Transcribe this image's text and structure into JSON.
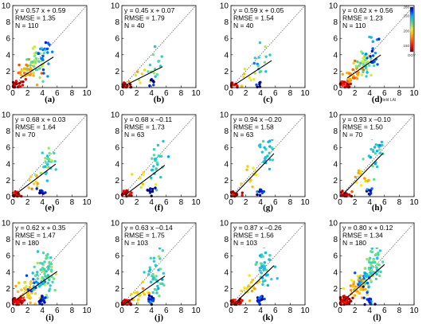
{
  "chart_data": {
    "type": "scatter",
    "layout": "grid 3x4",
    "axes": {
      "xlim": [
        0,
        10
      ],
      "ylim": [
        0,
        10
      ],
      "xticks": [
        0,
        2,
        4,
        6,
        8,
        10
      ],
      "yticks": [
        0,
        2,
        4,
        6,
        8,
        10
      ]
    },
    "reference_line": "1:1 dotted",
    "panels": [
      {
        "label": "(a)",
        "equation": "y = 0.57 x + 0.59",
        "rmse": "RMSE = 1.35",
        "n": "N = 110",
        "slope": 0.57,
        "intercept": 0.59,
        "fit_x": [
          1.0,
          5.5
        ],
        "seed": 11,
        "clusters": [
          [
            0.6,
            0.4,
            0.5,
            0.3,
            25,
            0.08
          ],
          [
            2.0,
            1.8,
            0.8,
            0.6,
            30,
            0.35
          ],
          [
            3.3,
            3.0,
            0.6,
            0.8,
            35,
            0.6
          ],
          [
            4.3,
            3.9,
            0.5,
            1.2,
            20,
            0.85
          ]
        ]
      },
      {
        "label": "(b)",
        "equation": "y = 0.45 x + 0.07",
        "rmse": "RMSE = 1.79",
        "n": "N = 40",
        "slope": 0.45,
        "intercept": 0.07,
        "fit_x": [
          0.5,
          5.5
        ],
        "seed": 23,
        "clusters": [
          [
            0.6,
            0.2,
            0.4,
            0.2,
            12,
            0.08
          ],
          [
            2.5,
            1.0,
            0.6,
            0.5,
            8,
            0.4
          ],
          [
            4.3,
            2.5,
            0.6,
            1.0,
            14,
            0.7
          ],
          [
            3.9,
            0.6,
            0.3,
            0.3,
            6,
            0.97
          ]
        ]
      },
      {
        "label": "(c)",
        "equation": "y = 0.59 x + 0.05",
        "rmse": "RMSE = 1.54",
        "n": "N = 40",
        "slope": 0.59,
        "intercept": 0.05,
        "fit_x": [
          0.5,
          5.5
        ],
        "seed": 37,
        "clusters": [
          [
            0.6,
            0.2,
            0.4,
            0.2,
            12,
            0.08
          ],
          [
            2.5,
            1.2,
            0.6,
            0.5,
            8,
            0.45
          ],
          [
            4.3,
            3.2,
            0.6,
            1.1,
            14,
            0.7
          ],
          [
            3.9,
            0.6,
            0.3,
            0.3,
            6,
            0.97
          ]
        ]
      },
      {
        "label": "(d)",
        "equation": "y = 0.62 x + 0.56",
        "rmse": "RMSE = 1.23",
        "n": "N = 110",
        "slope": 0.62,
        "intercept": 0.56,
        "fit_x": [
          1.0,
          5.5
        ],
        "seed": 41,
        "clusters": [
          [
            0.6,
            0.4,
            0.5,
            0.3,
            25,
            0.08
          ],
          [
            2.0,
            1.8,
            0.8,
            0.6,
            30,
            0.35
          ],
          [
            3.3,
            3.1,
            0.6,
            0.8,
            35,
            0.6
          ],
          [
            4.3,
            4.0,
            0.5,
            1.2,
            20,
            0.85
          ]
        ],
        "xlabel": "Field LAI",
        "colorbar": {
          "ticks": [
            150,
            200,
            250,
            280
          ],
          "label": "DOY"
        }
      },
      {
        "label": "(e)",
        "equation": "y = 0.68 x + 0.03",
        "rmse": "RMSE = 1.64",
        "n": "N = 70",
        "slope": 0.68,
        "intercept": 0.03,
        "fit_x": [
          0.5,
          5.8
        ],
        "seed": 53,
        "clusters": [
          [
            0.6,
            0.3,
            0.4,
            0.2,
            20,
            0.08
          ],
          [
            2.8,
            1.5,
            0.7,
            0.8,
            12,
            0.45
          ],
          [
            4.7,
            4.3,
            0.6,
            1.2,
            28,
            0.7
          ],
          [
            4.0,
            0.6,
            0.3,
            0.3,
            10,
            0.97
          ]
        ]
      },
      {
        "label": "(f)",
        "equation": "y = 0.68 x –0.11",
        "rmse": "RMSE = 1.73",
        "n": "N = 63",
        "slope": 0.68,
        "intercept": -0.11,
        "fit_x": [
          0.5,
          5.8
        ],
        "seed": 67,
        "clusters": [
          [
            0.6,
            0.3,
            0.4,
            0.2,
            18,
            0.08
          ],
          [
            2.8,
            1.5,
            0.7,
            0.8,
            10,
            0.45
          ],
          [
            4.7,
            4.3,
            0.6,
            1.2,
            25,
            0.7
          ],
          [
            4.0,
            0.6,
            0.3,
            0.3,
            10,
            0.97
          ]
        ]
      },
      {
        "label": "(g)",
        "equation": "y = 0.94 x –0.20",
        "rmse": "RMSE = 1.58",
        "n": "N = 63",
        "slope": 0.94,
        "intercept": -0.2,
        "fit_x": [
          0.5,
          5.8
        ],
        "seed": 71,
        "clusters": [
          [
            0.6,
            0.3,
            0.4,
            0.2,
            18,
            0.08
          ],
          [
            2.8,
            2.2,
            0.7,
            0.8,
            10,
            0.45
          ],
          [
            4.8,
            5.2,
            0.6,
            1.2,
            25,
            0.72
          ],
          [
            4.0,
            0.6,
            0.3,
            0.3,
            10,
            0.97
          ]
        ]
      },
      {
        "label": "(h)",
        "equation": "y = 0.93 x –0.10",
        "rmse": "RMSE = 1.50",
        "n": "N = 70",
        "slope": 0.93,
        "intercept": -0.1,
        "fit_x": [
          0.5,
          5.8
        ],
        "seed": 83,
        "clusters": [
          [
            0.6,
            0.3,
            0.4,
            0.2,
            20,
            0.08
          ],
          [
            2.8,
            2.2,
            0.7,
            0.8,
            12,
            0.45
          ],
          [
            4.8,
            5.2,
            0.6,
            1.2,
            28,
            0.72
          ],
          [
            4.0,
            0.6,
            0.3,
            0.3,
            10,
            0.97
          ]
        ]
      },
      {
        "label": "(i)",
        "equation": "y = 0.62 x + 0.35",
        "rmse": "RMSE = 1.47",
        "n": "N = 180",
        "slope": 0.62,
        "intercept": 0.35,
        "fit_x": [
          0.5,
          6.0
        ],
        "seed": 97,
        "clusters": [
          [
            0.6,
            0.4,
            0.5,
            0.3,
            45,
            0.08
          ],
          [
            2.2,
            1.7,
            0.8,
            0.7,
            40,
            0.4
          ],
          [
            4.3,
            3.9,
            0.7,
            1.3,
            65,
            0.65
          ],
          [
            4.0,
            0.6,
            0.3,
            0.3,
            15,
            0.97
          ],
          [
            3.0,
            2.6,
            0.6,
            0.6,
            15,
            0.85
          ]
        ]
      },
      {
        "label": "(j)",
        "equation": "y = 0.63 x –0.14",
        "rmse": "RMSE = 1.75",
        "n": "N = 103",
        "slope": 0.63,
        "intercept": -0.14,
        "fit_x": [
          0.5,
          5.8
        ],
        "seed": 101,
        "clusters": [
          [
            0.6,
            0.3,
            0.4,
            0.2,
            30,
            0.08
          ],
          [
            2.6,
            1.3,
            0.7,
            0.8,
            18,
            0.45
          ],
          [
            4.5,
            3.6,
            0.6,
            1.3,
            40,
            0.7
          ],
          [
            4.0,
            0.6,
            0.3,
            0.3,
            15,
            0.97
          ]
        ]
      },
      {
        "label": "(k)",
        "equation": "y = 0.87 x –0.26",
        "rmse": "RMSE = 1.56",
        "n": "N = 103",
        "slope": 0.87,
        "intercept": -0.26,
        "fit_x": [
          0.5,
          5.8
        ],
        "seed": 113,
        "clusters": [
          [
            0.6,
            0.3,
            0.4,
            0.2,
            30,
            0.08
          ],
          [
            2.6,
            1.9,
            0.7,
            0.8,
            18,
            0.45
          ],
          [
            4.6,
            4.8,
            0.6,
            1.3,
            40,
            0.72
          ],
          [
            4.0,
            0.6,
            0.3,
            0.3,
            15,
            0.97
          ]
        ]
      },
      {
        "label": "(l)",
        "equation": "y = 0.80 x + 0.12",
        "rmse": "RMSE = 1.34",
        "n": "N = 180",
        "slope": 0.8,
        "intercept": 0.12,
        "fit_x": [
          0.5,
          6.0
        ],
        "seed": 127,
        "clusters": [
          [
            0.6,
            0.4,
            0.5,
            0.3,
            45,
            0.08
          ],
          [
            2.2,
            2.0,
            0.8,
            0.7,
            40,
            0.4
          ],
          [
            4.4,
            4.6,
            0.7,
            1.3,
            65,
            0.68
          ],
          [
            4.0,
            0.6,
            0.3,
            0.3,
            15,
            0.97
          ],
          [
            3.0,
            3.0,
            0.6,
            0.6,
            15,
            0.85
          ]
        ]
      }
    ]
  }
}
